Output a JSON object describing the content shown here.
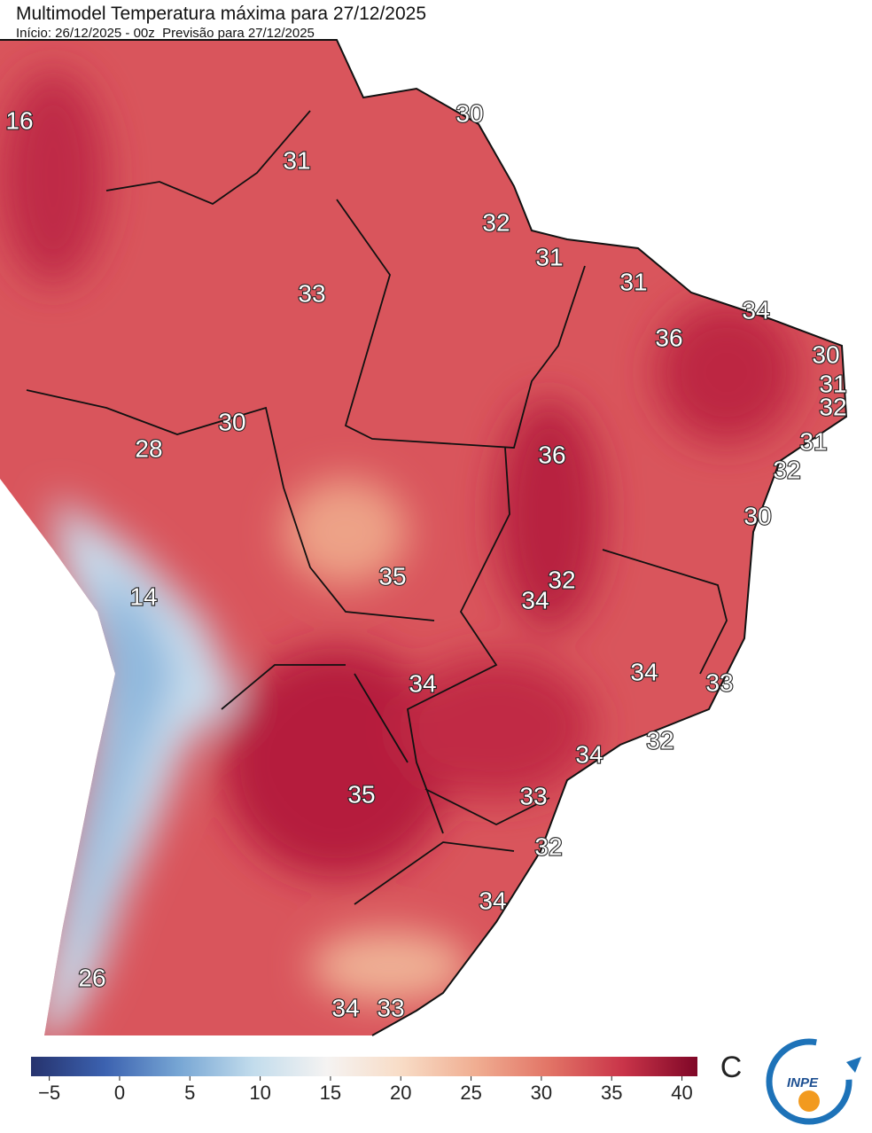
{
  "header": {
    "title": "Multimodel Temperatura máxima para 27/12/2025",
    "subtitle": "Início: 26/12/2025 - 00z  Previsão para 27/12/2025"
  },
  "map": {
    "labels": [
      "16",
      "30",
      "31",
      "32",
      "31",
      "31",
      "34",
      "33",
      "36",
      "30",
      "31",
      "32",
      "31",
      "30",
      "28",
      "36",
      "32",
      "30",
      "35",
      "32",
      "34",
      "14",
      "34",
      "33",
      "34",
      "32",
      "34",
      "35",
      "33",
      "32",
      "34",
      "26",
      "34",
      "33"
    ]
  },
  "colorbar": {
    "lim": [
      -6.3,
      41.1
    ],
    "ticks": [
      {
        "value": -5,
        "label": "−5"
      },
      0,
      5,
      10,
      15,
      20,
      25,
      30,
      35,
      40
    ],
    "colors": [
      "#26336e",
      "#3c62b0",
      "#77a6d4",
      "#c2dcec",
      "#f5f3f2",
      "#f8dcc6",
      "#f0ae92",
      "#e27466",
      "#c93449",
      "#7f0727"
    ],
    "unit": "C"
  },
  "logo": {
    "text": "INPE"
  }
}
